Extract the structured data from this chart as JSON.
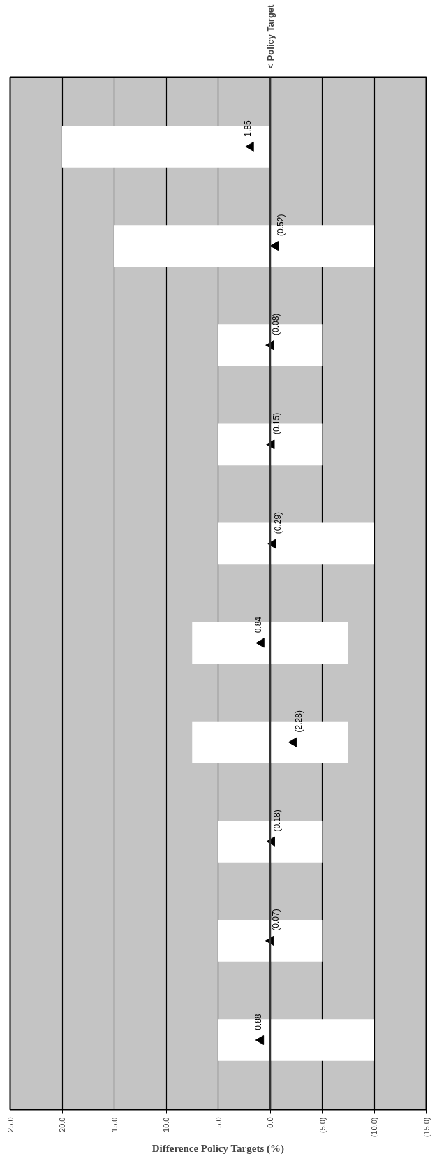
{
  "chart_data": {
    "type": "bar",
    "orientation": "horizontal",
    "xlabel": "Difference Policy Targets (%)",
    "categories": [
      null,
      null,
      null,
      null,
      null,
      null,
      null,
      null,
      null,
      null
    ],
    "xlim": [
      25,
      -15
    ],
    "xticks": [
      {
        "value": 25,
        "label": "25.0"
      },
      {
        "value": 20,
        "label": "20.0"
      },
      {
        "value": 15,
        "label": "15.0"
      },
      {
        "value": 10,
        "label": "10.0"
      },
      {
        "value": 5,
        "label": "5.0"
      },
      {
        "value": 0,
        "label": "0.0"
      },
      {
        "value": -5,
        "label": "(5.0)"
      },
      {
        "value": -10,
        "label": "(10.0)"
      },
      {
        "value": -15,
        "label": "(15.0)"
      }
    ],
    "grid": "x",
    "series": [
      {
        "color": "#ffffff",
        "base": [
          0,
          -10,
          -5,
          -5,
          -10,
          -7.5,
          -7.5,
          -5,
          -5,
          -10
        ],
        "values": [
          20,
          25,
          10,
          10,
          15,
          15,
          15,
          10,
          10,
          15
        ]
      },
      {
        "type": "scatter",
        "color": "#000000",
        "marker": "triangle",
        "values": [
          1.85,
          -0.52,
          -0.08,
          -0.15,
          -0.29,
          0.84,
          -2.28,
          -0.18,
          -0.07,
          0.88
        ],
        "value_labels": [
          "1.85",
          "(0.52)",
          "(0.08)",
          "(0.15)",
          "(0.29)",
          "0.84",
          "(2.28)",
          "(0.18)",
          "(0.07)",
          "0.88"
        ]
      }
    ],
    "ref_lines": [
      {
        "axis": "x",
        "value": 0,
        "label": "< Policy Target",
        "color": "#333333"
      }
    ]
  }
}
